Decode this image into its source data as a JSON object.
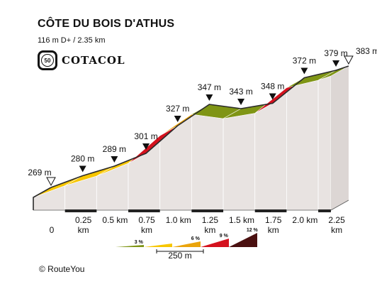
{
  "header": {
    "title": "CÔTE DU BOIS D'ATHUS",
    "subtitle": "116 m D+ / 2.35 km",
    "logo_number": "50",
    "logo_text": "COTACOL"
  },
  "footer": {
    "copyright": "© RouteYou"
  },
  "chart_data": {
    "type": "area",
    "title": "CÔTE DU BOIS D'ATHUS",
    "subtitle": "116 m D+ / 2.35 km",
    "xlabel": "",
    "ylabel": "",
    "xlim": [
      0,
      2.35
    ],
    "ylim": [
      269,
      383
    ],
    "x_ticks": [
      {
        "x": 0,
        "label": "0"
      },
      {
        "x": 0.25,
        "label": "0.25 km"
      },
      {
        "x": 0.5,
        "label": "0.5 km"
      },
      {
        "x": 0.75,
        "label": "0.75 km"
      },
      {
        "x": 1.0,
        "label": "1.0 km"
      },
      {
        "x": 1.25,
        "label": "1.25 km"
      },
      {
        "x": 1.5,
        "label": "1.5 km"
      },
      {
        "x": 1.75,
        "label": "1.75 km"
      },
      {
        "x": 2.0,
        "label": "2.0 km"
      },
      {
        "x": 2.25,
        "label": "2.25 km"
      }
    ],
    "points": [
      {
        "x": 0,
        "y": 269,
        "label": "269 m",
        "marker": "start"
      },
      {
        "x": 0.25,
        "y": 280,
        "label": "280 m",
        "marker": "point"
      },
      {
        "x": 0.5,
        "y": 289,
        "label": "289 m",
        "marker": "point"
      },
      {
        "x": 0.75,
        "y": 301,
        "label": "301 m",
        "marker": "point"
      },
      {
        "x": 1.0,
        "y": 327,
        "label": "327 m",
        "marker": "point"
      },
      {
        "x": 1.25,
        "y": 347,
        "label": "347 m",
        "marker": "point"
      },
      {
        "x": 1.5,
        "y": 343,
        "label": "343 m",
        "marker": "point"
      },
      {
        "x": 1.75,
        "y": 348,
        "label": "348 m",
        "marker": "point"
      },
      {
        "x": 2.0,
        "y": 372,
        "label": "372 m",
        "marker": "point"
      },
      {
        "x": 2.25,
        "y": 379,
        "label": "379 m",
        "marker": "point"
      },
      {
        "x": 2.35,
        "y": 383,
        "label": "383 m",
        "marker": "end"
      }
    ],
    "segment_colors": [
      "#f7c600",
      "#f7c600",
      "#f7c600",
      "#d4121e",
      "#eaa40c",
      "#7f9515",
      "#7f9515",
      "#d4121e",
      "#7f9515",
      "#7f9515",
      "#f7c600"
    ],
    "gradient_legend": {
      "items": [
        {
          "label": "3 %",
          "color": "#7f9515"
        },
        {
          "label": "",
          "color": "#f7c600"
        },
        {
          "label": "6 %",
          "color": "#eaa40c"
        },
        {
          "label": "9 %",
          "color": "#d4121e"
        },
        {
          "label": "12 %",
          "color": "#4a1010"
        }
      ],
      "scale_label": "250 m"
    },
    "colors": {
      "side_face": "#e8e3e1",
      "outline": "#2a2a2a",
      "base_stripe": "#222222"
    }
  }
}
